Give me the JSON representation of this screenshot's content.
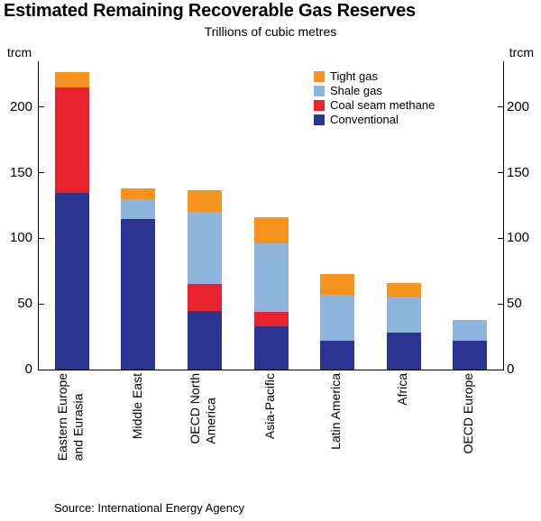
{
  "title": "Estimated Remaining Recoverable Gas Reserves",
  "subtitle": "Trillions of cubic metres",
  "unit_label_left": "trcm",
  "unit_label_right": "trcm",
  "source": "Source: International Energy Agency",
  "colors": {
    "conventional": "#2b3491",
    "coal_seam_methane": "#e8232e",
    "shale_gas": "#8fb4de",
    "tight_gas": "#f6921e",
    "axis": "#000000"
  },
  "chart_data": {
    "type": "bar",
    "stacked": true,
    "title": "Estimated Remaining Recoverable Gas Reserves",
    "subtitle": "Trillions of cubic metres",
    "ylabel": "trcm",
    "ylim": [
      0,
      235
    ],
    "yticks": [
      0,
      50,
      100,
      150,
      200
    ],
    "grid": false,
    "legend_position": "top-right-inside",
    "categories": [
      "Eastern Europe and Eurasia",
      "Middle East",
      "OECD North America",
      "Asia-Pacific",
      "Latin America",
      "Africa",
      "OECD Europe"
    ],
    "categories_display": [
      [
        "Eastern Europe",
        "and Eurasia"
      ],
      [
        "Middle East"
      ],
      [
        "OECD North",
        "America"
      ],
      [
        "Asia-Pacific"
      ],
      [
        "Latin America"
      ],
      [
        "Africa"
      ],
      [
        "OECD Europe"
      ]
    ],
    "series": [
      {
        "key": "conventional",
        "name": "Conventional",
        "color": "#2b3491",
        "values": [
          135,
          115,
          45,
          33,
          22,
          28,
          22
        ]
      },
      {
        "key": "coal-seam-methane",
        "name": "Coal seam methane",
        "color": "#e8232e",
        "values": [
          80,
          0,
          20,
          11,
          0,
          0,
          0
        ]
      },
      {
        "key": "shale-gas",
        "name": "Shale gas",
        "color": "#8fb4de",
        "values": [
          0,
          15,
          55,
          52,
          35,
          28,
          16
        ]
      },
      {
        "key": "tight-gas",
        "name": "Tight gas",
        "color": "#f6921e",
        "values": [
          12,
          8,
          17,
          20,
          16,
          10,
          0
        ]
      }
    ]
  }
}
